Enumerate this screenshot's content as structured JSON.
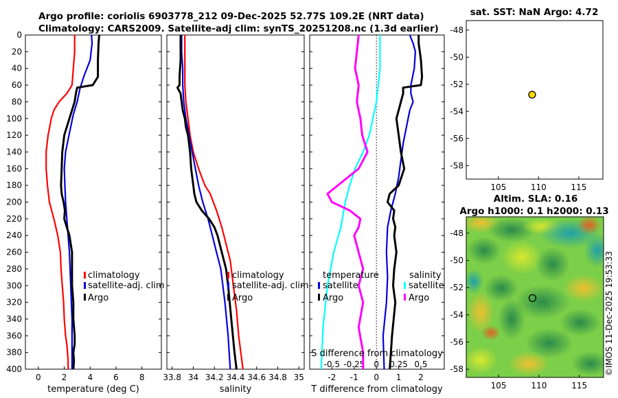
{
  "header": {
    "line1": "Argo profile: coriolis 6903778_212 09-Dec-2025 52.77S 109.2E (NRT data)",
    "line2": "Climatology: CARS2009. Satellite-adj clim: synTS_20251208.nc (1.3d earlier)"
  },
  "watermark": "©IMOS 11-Dec-2025 19:53:33",
  "colors": {
    "climatology": "#ff0000",
    "satellite_clim": "#0000dd",
    "argo": "#000000",
    "sat_S": "#00ffff",
    "argo_S": "#ff00ff",
    "marker": "#ffd700"
  },
  "chart_data": [
    {
      "id": "temp",
      "type": "line",
      "xlabel": "temperature (deg C)",
      "xlim": [
        -1,
        9.5
      ],
      "ylim": [
        400,
        0
      ],
      "xticks": [
        0,
        2,
        4,
        6,
        8
      ],
      "xtick_labels": [
        "0",
        "2",
        "4",
        "6",
        "8"
      ],
      "yticks": [
        0,
        20,
        40,
        60,
        80,
        100,
        120,
        140,
        160,
        180,
        200,
        220,
        240,
        260,
        280,
        300,
        320,
        340,
        360,
        380,
        400
      ],
      "ytick_labels": [
        "0",
        "20",
        "40",
        "60",
        "80",
        "100",
        "120",
        "140",
        "160",
        "180",
        "200",
        "220",
        "240",
        "260",
        "280",
        "300",
        "320",
        "340",
        "360",
        "380",
        "400"
      ],
      "legend": [
        "climatology",
        "satellite-adj. clim",
        "Argo"
      ],
      "series": [
        {
          "name": "climatology",
          "color": "#ff0000",
          "x": [
            2.8,
            2.8,
            2.7,
            2.6,
            2.2,
            1.6,
            1.2,
            1.0,
            0.75,
            0.6,
            0.6,
            0.7,
            0.85,
            1.2,
            1.5,
            1.7,
            1.75,
            1.85,
            1.95,
            2.0,
            2.1,
            2.2,
            2.25,
            2.3,
            2.3
          ],
          "y": [
            0,
            20,
            40,
            60,
            70,
            80,
            90,
            100,
            120,
            140,
            160,
            180,
            200,
            220,
            240,
            260,
            280,
            300,
            320,
            340,
            360,
            370,
            380,
            390,
            400
          ]
        },
        {
          "name": "satellite-adj. clim",
          "color": "#0000dd",
          "x": [
            4.1,
            4.15,
            4.0,
            3.5,
            3.2,
            3.0,
            2.7,
            2.5,
            2.3,
            2.1,
            2.0,
            2.05,
            2.1,
            2.2,
            2.3,
            2.4,
            2.45,
            2.5,
            2.55,
            2.6,
            2.6,
            2.6
          ],
          "y": [
            0,
            10,
            30,
            50,
            65,
            80,
            95,
            110,
            125,
            140,
            160,
            180,
            200,
            220,
            240,
            260,
            280,
            300,
            320,
            340,
            370,
            400
          ]
        },
        {
          "name": "Argo",
          "color": "#000000",
          "x": [
            4.7,
            4.65,
            4.6,
            4.6,
            4.2,
            3.0,
            2.9,
            2.8,
            2.6,
            2.4,
            2.2,
            2.0,
            1.85,
            1.8,
            1.75,
            1.8,
            1.95,
            2.05,
            2.0,
            2.2,
            2.4,
            2.6,
            2.6,
            2.6,
            2.7,
            2.7,
            2.8,
            2.8,
            2.7,
            2.75,
            2.7
          ],
          "y": [
            0,
            10,
            30,
            50,
            60,
            63,
            70,
            80,
            90,
            100,
            110,
            120,
            140,
            160,
            180,
            190,
            200,
            210,
            220,
            230,
            240,
            260,
            280,
            300,
            320,
            340,
            360,
            370,
            380,
            390,
            400
          ]
        }
      ]
    },
    {
      "id": "salt",
      "type": "line",
      "xlabel": "salinity",
      "xlim": [
        33.75,
        35.05
      ],
      "ylim": [
        400,
        0
      ],
      "xticks": [
        33.8,
        34,
        34.2,
        34.4,
        34.6,
        34.8,
        35
      ],
      "xtick_labels": [
        "33.8",
        "34",
        "34.2",
        "34.4",
        "34.6",
        "34.8",
        "35"
      ],
      "legend": [
        "climatology",
        "satellite-adj. clim",
        "Argo"
      ],
      "series": [
        {
          "name": "climatology",
          "color": "#ff0000",
          "x": [
            33.92,
            33.92,
            33.92,
            33.92,
            33.93,
            33.95,
            33.97,
            34.0,
            34.05,
            34.08,
            34.11,
            34.16,
            34.22,
            34.27,
            34.31,
            34.35,
            34.38,
            34.41,
            34.43,
            34.45,
            34.47
          ],
          "y": [
            0,
            20,
            40,
            60,
            80,
            100,
            120,
            140,
            160,
            170,
            180,
            190,
            210,
            230,
            250,
            270,
            300,
            330,
            360,
            380,
            400
          ]
        },
        {
          "name": "satellite-adj. clim",
          "color": "#0000dd",
          "x": [
            33.89,
            33.89,
            33.9,
            33.9,
            33.91,
            33.93,
            33.96,
            33.99,
            34.02,
            34.05,
            34.09,
            34.14,
            34.18,
            34.22,
            34.26,
            34.3,
            34.33,
            34.35
          ],
          "y": [
            0,
            20,
            40,
            60,
            80,
            100,
            120,
            140,
            160,
            180,
            200,
            220,
            240,
            260,
            280,
            320,
            360,
            400
          ]
        },
        {
          "name": "Argo",
          "color": "#000000",
          "x": [
            33.88,
            33.88,
            33.88,
            33.87,
            33.87,
            33.85,
            33.88,
            33.89,
            33.9,
            33.92,
            33.93,
            33.95,
            33.97,
            33.98,
            34.0,
            34.01,
            34.02,
            34.03,
            34.08,
            34.15,
            34.2,
            34.23,
            34.27,
            34.31,
            34.33,
            34.36,
            34.39,
            34.41
          ],
          "y": [
            0,
            10,
            30,
            50,
            60,
            63,
            70,
            80,
            90,
            100,
            110,
            120,
            140,
            160,
            180,
            190,
            195,
            200,
            210,
            220,
            230,
            240,
            260,
            280,
            300,
            340,
            380,
            400
          ]
        }
      ]
    },
    {
      "id": "diff",
      "type": "line",
      "xlabel": "T difference from climatology",
      "xlim": [
        -3,
        3.05
      ],
      "ylim": [
        400,
        0
      ],
      "xticks": [
        -2,
        -1,
        0,
        1,
        2
      ],
      "xtick_labels": [
        "-2",
        "-1",
        "0",
        "1",
        "2"
      ],
      "top_label": "S difference from climatology",
      "top_ticks": [
        -0.5,
        -0.25,
        0,
        0.25,
        0.5
      ],
      "top_tick_labels": [
        "-0.5",
        "-0.25",
        "0",
        "0.25",
        "0.5"
      ],
      "legend_titles": [
        "temperature",
        "salinity"
      ],
      "legend_left": [
        "satellite",
        "Argo"
      ],
      "legend_right": [
        "satellite",
        "Argo"
      ],
      "series": [
        {
          "name": "T satellite",
          "color": "#0000dd",
          "x": [
            1.5,
            1.65,
            1.75,
            1.7,
            1.55,
            1.55,
            1.65,
            1.5,
            1.35,
            1.2,
            1.1,
            1.0,
            0.85,
            0.65,
            0.5,
            0.45,
            0.5,
            0.45,
            0.3,
            0.35
          ],
          "y": [
            0,
            10,
            20,
            40,
            60,
            70,
            80,
            90,
            110,
            130,
            150,
            170,
            190,
            210,
            230,
            260,
            290,
            320,
            360,
            400
          ]
        },
        {
          "name": "T Argo",
          "color": "#000000",
          "x": [
            1.9,
            1.9,
            1.95,
            2.0,
            2.05,
            2.0,
            1.2,
            1.2,
            1.1,
            1.0,
            0.9,
            1.0,
            1.1,
            1.25,
            1.0,
            0.6,
            0.5,
            0.8,
            0.75,
            0.85,
            0.8,
            0.9,
            0.8,
            0.75,
            0.85,
            0.7,
            0.6
          ],
          "y": [
            0,
            10,
            20,
            30,
            50,
            60,
            63,
            70,
            80,
            90,
            100,
            120,
            140,
            160,
            180,
            190,
            200,
            210,
            220,
            230,
            240,
            260,
            280,
            300,
            320,
            360,
            400
          ]
        },
        {
          "name": "S satellite",
          "color": "#00ffff",
          "x": [
            0.04,
            0.04,
            0.04,
            0.02,
            0.0,
            -0.04,
            -0.08,
            -0.15,
            -0.24,
            -0.3,
            -0.35,
            -0.4,
            -0.48,
            -0.55,
            -0.6,
            -0.62
          ],
          "y": [
            0,
            20,
            40,
            60,
            80,
            100,
            120,
            140,
            160,
            180,
            200,
            230,
            260,
            300,
            350,
            400
          ]
        },
        {
          "name": "S Argo",
          "color": "#ff00ff",
          "x": [
            -0.2,
            -0.22,
            -0.24,
            -0.2,
            -0.22,
            -0.18,
            -0.16,
            -0.1,
            -0.2,
            -0.55,
            -0.5,
            -0.3,
            -0.18,
            -0.2,
            -0.25,
            -0.2,
            -0.15,
            -0.2,
            -0.15,
            -0.2,
            -0.15,
            -0.15
          ],
          "y": [
            0,
            20,
            40,
            60,
            80,
            100,
            120,
            140,
            160,
            190,
            200,
            210,
            220,
            230,
            240,
            260,
            280,
            300,
            320,
            350,
            380,
            400
          ]
        }
      ]
    },
    {
      "id": "sst_map",
      "type": "scatter",
      "title": "sat. SST: NaN Argo: 4.72",
      "xlim": [
        101,
        118
      ],
      "ylim": [
        -59,
        -47.3
      ],
      "xticks": [
        105,
        110,
        115
      ],
      "xtick_labels": [
        "105",
        "110",
        "115"
      ],
      "yticks": [
        -48,
        -50,
        -52,
        -54,
        -56,
        -58
      ],
      "ytick_labels": [
        "-48",
        "-50",
        "-52",
        "-54",
        "-56",
        "-58"
      ],
      "points": [
        {
          "x": 109.2,
          "y": -52.77
        }
      ]
    },
    {
      "id": "sla_map",
      "type": "heatmap",
      "title_line1": "Altim. SLA: 0.16",
      "title_line2": "Argo h1000: 0.1 h2000: 0.13",
      "xlim": [
        101,
        118
      ],
      "ylim": [
        -58.6,
        -46.8
      ],
      "xticks": [
        105,
        110,
        115
      ],
      "xtick_labels": [
        "105",
        "110",
        "115"
      ],
      "yticks": [
        -48,
        -50,
        -52,
        -54,
        -56,
        -58
      ],
      "ytick_labels": [
        "-48",
        "-50",
        "-52",
        "-54",
        "-56",
        "-58"
      ],
      "points": [
        {
          "x": 109.2,
          "y": -52.77
        }
      ]
    }
  ]
}
